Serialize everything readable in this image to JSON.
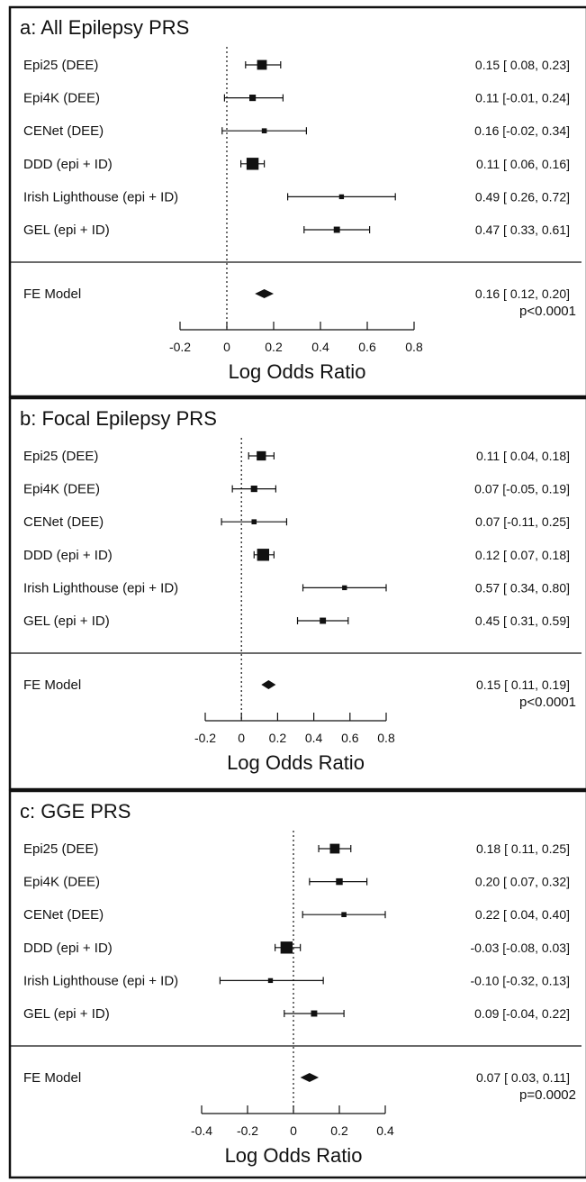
{
  "chart_data": [
    {
      "type": "forest",
      "title": "a: All Epilepsy PRS",
      "xlabel": "Log Odds Ratio",
      "xlim": [
        -0.2,
        0.8
      ],
      "xticks": [
        -0.2,
        0,
        0.2,
        0.4,
        0.6,
        0.8
      ],
      "tick_labels": [
        "-0.2",
        "0",
        "0.2",
        "0.4",
        "0.6",
        "0.8"
      ],
      "reference_line": 0,
      "studies": [
        {
          "label": "Epi25 (DEE)",
          "estimate": 0.15,
          "ci_low": 0.08,
          "ci_high": 0.23,
          "ci_text": "0.15 [ 0.08, 0.23]",
          "weight": 3
        },
        {
          "label": "Epi4K (DEE)",
          "estimate": 0.11,
          "ci_low": -0.01,
          "ci_high": 0.24,
          "ci_text": "0.11 [-0.01, 0.24]",
          "weight": 1.6
        },
        {
          "label": "CENet (DEE)",
          "estimate": 0.16,
          "ci_low": -0.02,
          "ci_high": 0.34,
          "ci_text": "0.16 [-0.02, 0.34]",
          "weight": 1
        },
        {
          "label": "DDD (epi + ID)",
          "estimate": 0.11,
          "ci_low": 0.06,
          "ci_high": 0.16,
          "ci_text": "0.11 [ 0.06, 0.16]",
          "weight": 4
        },
        {
          "label": "Irish Lighthouse (epi + ID)",
          "estimate": 0.49,
          "ci_low": 0.26,
          "ci_high": 0.72,
          "ci_text": "0.49 [ 0.26, 0.72]",
          "weight": 0.9
        },
        {
          "label": "GEL (epi + ID)",
          "estimate": 0.47,
          "ci_low": 0.33,
          "ci_high": 0.61,
          "ci_text": "0.47 [ 0.33, 0.61]",
          "weight": 1.5
        }
      ],
      "summary": {
        "label": "FE Model",
        "estimate": 0.16,
        "ci_low": 0.12,
        "ci_high": 0.2,
        "ci_text": "0.16 [ 0.12, 0.20]",
        "p_text": "p<0.0001"
      }
    },
    {
      "type": "forest",
      "title": "b: Focal Epilepsy PRS",
      "xlabel": "Log Odds Ratio",
      "xlim": [
        -0.2,
        0.8
      ],
      "xticks": [
        -0.2,
        0,
        0.2,
        0.4,
        0.6,
        0.8
      ],
      "tick_labels": [
        "-0.2",
        "0",
        "0.2",
        "0.4",
        "0.6",
        "0.8"
      ],
      "reference_line": 0,
      "studies": [
        {
          "label": "Epi25 (DEE)",
          "estimate": 0.11,
          "ci_low": 0.04,
          "ci_high": 0.18,
          "ci_text": "0.11 [ 0.04, 0.18]",
          "weight": 2.8
        },
        {
          "label": "Epi4K (DEE)",
          "estimate": 0.07,
          "ci_low": -0.05,
          "ci_high": 0.19,
          "ci_text": "0.07 [-0.05, 0.19]",
          "weight": 1.6
        },
        {
          "label": "CENet (DEE)",
          "estimate": 0.07,
          "ci_low": -0.11,
          "ci_high": 0.25,
          "ci_text": "0.07 [-0.11, 0.25]",
          "weight": 1
        },
        {
          "label": "DDD (epi + ID)",
          "estimate": 0.12,
          "ci_low": 0.07,
          "ci_high": 0.18,
          "ci_text": "0.12 [ 0.07, 0.18]",
          "weight": 4
        },
        {
          "label": "Irish Lighthouse (epi + ID)",
          "estimate": 0.57,
          "ci_low": 0.34,
          "ci_high": 0.8,
          "ci_text": "0.57 [ 0.34, 0.80]",
          "weight": 0.9
        },
        {
          "label": "GEL (epi + ID)",
          "estimate": 0.45,
          "ci_low": 0.31,
          "ci_high": 0.59,
          "ci_text": "0.45 [ 0.31, 0.59]",
          "weight": 1.5
        }
      ],
      "summary": {
        "label": "FE Model",
        "estimate": 0.15,
        "ci_low": 0.11,
        "ci_high": 0.19,
        "ci_text": "0.15 [ 0.11, 0.19]",
        "p_text": "p<0.0001"
      }
    },
    {
      "type": "forest",
      "title": "c: GGE PRS",
      "xlabel": "Log Odds Ratio",
      "xlim": [
        -0.4,
        0.4
      ],
      "xticks": [
        -0.4,
        -0.2,
        0,
        0.2,
        0.4
      ],
      "tick_labels": [
        "-0.4",
        "-0.2",
        "0",
        "0.2",
        "0.4"
      ],
      "reference_line": 0,
      "studies": [
        {
          "label": "Epi25 (DEE)",
          "estimate": 0.18,
          "ci_low": 0.11,
          "ci_high": 0.25,
          "ci_text": "0.18 [ 0.11, 0.25]",
          "weight": 3
        },
        {
          "label": "Epi4K (DEE)",
          "estimate": 0.2,
          "ci_low": 0.07,
          "ci_high": 0.32,
          "ci_text": "0.20 [ 0.07, 0.32]",
          "weight": 1.7
        },
        {
          "label": "CENet (DEE)",
          "estimate": 0.22,
          "ci_low": 0.04,
          "ci_high": 0.4,
          "ci_text": "0.22 [ 0.04, 0.40]",
          "weight": 1
        },
        {
          "label": "DDD (epi + ID)",
          "estimate": -0.03,
          "ci_low": -0.08,
          "ci_high": 0.03,
          "ci_text": "-0.03 [-0.08, 0.03]",
          "weight": 4
        },
        {
          "label": "Irish Lighthouse (epi + ID)",
          "estimate": -0.1,
          "ci_low": -0.32,
          "ci_high": 0.13,
          "ci_text": "-0.10 [-0.32, 0.13]",
          "weight": 0.9
        },
        {
          "label": "GEL (epi + ID)",
          "estimate": 0.09,
          "ci_low": -0.04,
          "ci_high": 0.22,
          "ci_text": "0.09 [-0.04, 0.22]",
          "weight": 1.5
        }
      ],
      "summary": {
        "label": "FE Model",
        "estimate": 0.07,
        "ci_low": 0.03,
        "ci_high": 0.11,
        "ci_text": "0.07 [ 0.03, 0.11]",
        "p_text": "p=0.0002"
      }
    }
  ]
}
